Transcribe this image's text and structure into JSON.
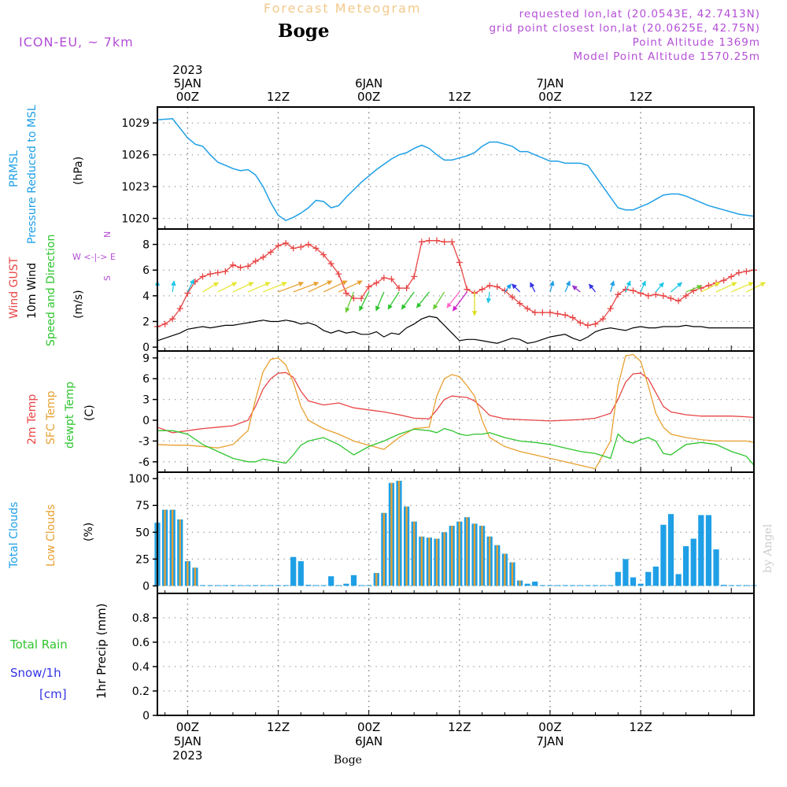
{
  "header": {
    "model": "ICON-EU, ~ 7km",
    "title": "Forecast Meteogram",
    "station": "Boge",
    "info": [
      "requested lon,lat (20.0543E, 42.7413N)",
      "grid point closest lon,lat (20.0625E, 42.75N)",
      "Point Altitude 1369m",
      "Model Point Altitude 1570.25m"
    ]
  },
  "footer_station": "Boge",
  "credit": "by Angel",
  "time_axis": {
    "top_labels": [
      {
        "h": 0,
        "lines": [
          "2023",
          "5JAN",
          "00Z"
        ]
      },
      {
        "h": 12,
        "lines": [
          "12Z"
        ]
      },
      {
        "h": 24,
        "lines": [
          "6JAN",
          "00Z"
        ]
      },
      {
        "h": 36,
        "lines": [
          "12Z"
        ]
      },
      {
        "h": 48,
        "lines": [
          "7JAN",
          "00Z"
        ]
      },
      {
        "h": 60,
        "lines": [
          "12Z"
        ]
      }
    ],
    "bottom_labels": [
      {
        "h": 0,
        "lines": [
          "00Z",
          "5JAN",
          "2023"
        ]
      },
      {
        "h": 12,
        "lines": [
          "12Z"
        ]
      },
      {
        "h": 24,
        "lines": [
          "00Z",
          "6JAN"
        ]
      },
      {
        "h": 36,
        "lines": [
          "12Z"
        ]
      },
      {
        "h": 48,
        "lines": [
          "00Z",
          "7JAN"
        ]
      },
      {
        "h": 60,
        "lines": [
          "12Z"
        ]
      }
    ]
  },
  "colors": {
    "pressure": "#1e9fe6",
    "gust": "#e84545",
    "wind": "#000000",
    "temp2m": "#e84545",
    "sfctemp": "#e8a030",
    "dewpt": "#2ec52e",
    "total_clouds": "#1e9fe6",
    "low_clouds": "#e8a030",
    "precip_label": "#3333e6",
    "compass": "#b34ed6"
  },
  "panels": {
    "pressure": {
      "labels": [
        "PRMSL",
        "Pressure Reduced to MSL"
      ],
      "unit": "(hPa)"
    },
    "wind": {
      "labels": [
        "Wind GUST",
        "10m Wind",
        "Speed and Direction"
      ],
      "unit": "(m/s)",
      "compass": [
        "N",
        "W <-|-> E",
        "S"
      ]
    },
    "temp": {
      "labels": [
        "2m Temp",
        "SFC Temp",
        "dewpt Temp"
      ],
      "unit": "(C)"
    },
    "clouds": {
      "labels": [
        "Total Clouds",
        "Low Clouds"
      ],
      "unit": "(%)"
    },
    "precip": {
      "legend": [
        "Total  Rain",
        "Snow/1h",
        "[cm]"
      ],
      "unit": "1hr Precip (mm)"
    }
  },
  "chart_data": [
    {
      "type": "line",
      "title": "PRMSL Pressure Reduced to MSL",
      "ylabel": "(hPa)",
      "ylim": [
        1019,
        1030.5
      ],
      "yticks": [
        1020,
        1023,
        1026,
        1029
      ],
      "x": [
        -4,
        -2,
        0,
        1,
        2,
        3,
        4,
        5,
        6,
        7,
        8,
        9,
        10,
        11,
        12,
        13,
        14,
        15,
        16,
        17,
        18,
        19,
        20,
        21,
        22,
        23,
        24,
        25,
        26,
        27,
        28,
        29,
        30,
        31,
        32,
        33,
        34,
        35,
        36,
        37,
        38,
        39,
        40,
        41,
        42,
        43,
        44,
        45,
        46,
        47,
        48,
        49,
        50,
        51,
        52,
        53,
        54,
        55,
        56,
        57,
        58,
        59,
        60,
        61,
        62,
        63,
        64,
        65,
        66,
        67,
        68,
        69,
        70,
        71,
        72,
        73,
        74,
        75
      ],
      "series": [
        {
          "values": [
            1029.3,
            1029.4,
            1027.6,
            1027.0,
            1026.8,
            1026.0,
            1025.3,
            1025.0,
            1024.7,
            1024.5,
            1024.6,
            1024.1,
            1023.0,
            1021.5,
            1020.3,
            1019.8,
            1020.1,
            1020.5,
            1021.0,
            1021.7,
            1021.6,
            1021.0,
            1021.2,
            1022.0,
            1022.7,
            1023.4,
            1024.0,
            1024.6,
            1025.1,
            1025.6,
            1026.0,
            1026.2,
            1026.6,
            1026.9,
            1026.6,
            1026.0,
            1025.5,
            1025.5,
            1025.7,
            1025.9,
            1026.2,
            1026.8,
            1027.2,
            1027.2,
            1027.0,
            1026.8,
            1026.3,
            1026.3,
            1026.0,
            1025.7,
            1025.4,
            1025.4,
            1025.2,
            1025.2,
            1025.2,
            1025.0,
            1024.0,
            1023.0,
            1022.0,
            1021.0,
            1020.8,
            1020.8,
            1021.1,
            1021.4,
            1021.8,
            1022.2,
            1022.3,
            1022.3,
            1022.1,
            1021.8,
            1021.5,
            1021.2,
            1021.0,
            1020.8,
            1020.6,
            1020.4,
            1020.3,
            1020.2
          ]
        }
      ]
    },
    {
      "type": "line",
      "title": "Wind GUST / 10m Wind Speed and Direction",
      "ylabel": "(m/s)",
      "ylim": [
        -0.3,
        9.2
      ],
      "yticks": [
        0,
        2,
        4,
        6,
        8
      ],
      "x": [
        -4,
        -3,
        -2,
        -1,
        0,
        1,
        2,
        3,
        4,
        5,
        6,
        7,
        8,
        9,
        10,
        11,
        12,
        13,
        14,
        15,
        16,
        17,
        18,
        19,
        20,
        21,
        22,
        23,
        24,
        25,
        26,
        27,
        28,
        29,
        30,
        31,
        32,
        33,
        34,
        35,
        36,
        37,
        38,
        39,
        40,
        41,
        42,
        43,
        44,
        45,
        46,
        47,
        48,
        49,
        50,
        51,
        52,
        53,
        54,
        55,
        56,
        57,
        58,
        59,
        60,
        61,
        62,
        63,
        64,
        65,
        66,
        67,
        68,
        69,
        70,
        71,
        72,
        73,
        74,
        75
      ],
      "series": [
        {
          "name": "Wind GUST",
          "values": [
            1.6,
            1.8,
            2.2,
            3.0,
            4.2,
            5.1,
            5.5,
            5.7,
            5.8,
            5.9,
            6.4,
            6.2,
            6.3,
            6.7,
            7.0,
            7.4,
            7.9,
            8.1,
            7.7,
            7.8,
            8.0,
            7.7,
            7.2,
            6.5,
            5.7,
            4.2,
            3.8,
            3.8,
            4.7,
            5.0,
            5.4,
            5.3,
            4.6,
            4.6,
            5.5,
            8.2,
            8.3,
            8.3,
            8.2,
            8.2,
            6.6,
            4.5,
            4.2,
            4.5,
            4.8,
            4.7,
            4.4,
            3.9,
            3.4,
            3.0,
            2.7,
            2.7,
            2.7,
            2.6,
            2.5,
            2.3,
            1.9,
            1.7,
            1.8,
            2.2,
            3.0,
            4.1,
            4.5,
            4.4,
            4.2,
            4.0,
            4.1,
            4.0,
            3.8,
            3.6,
            4.0,
            4.4,
            4.6,
            4.8,
            5.0,
            5.2,
            5.5,
            5.8,
            5.9,
            6.0
          ]
        },
        {
          "name": "10m Wind",
          "values": [
            0.5,
            0.7,
            0.9,
            1.1,
            1.4,
            1.5,
            1.6,
            1.5,
            1.6,
            1.7,
            1.7,
            1.8,
            1.9,
            2.0,
            2.1,
            2.0,
            2.0,
            2.1,
            2.0,
            1.8,
            1.9,
            1.7,
            1.3,
            1.1,
            1.3,
            1.1,
            1.2,
            1.0,
            1.0,
            1.2,
            0.8,
            1.1,
            1.0,
            1.5,
            1.8,
            2.2,
            2.4,
            2.3,
            1.7,
            1.1,
            0.5,
            0.6,
            0.6,
            0.5,
            0.4,
            0.3,
            0.5,
            0.7,
            0.6,
            0.3,
            0.4,
            0.6,
            0.8,
            0.9,
            1.0,
            0.7,
            0.5,
            0.8,
            1.2,
            1.4,
            1.5,
            1.4,
            1.3,
            1.5,
            1.6,
            1.5,
            1.5,
            1.6,
            1.6,
            1.6,
            1.7,
            1.6,
            1.6,
            1.5,
            1.5,
            1.5,
            1.5,
            1.5,
            1.5,
            1.5
          ]
        }
      ]
    },
    {
      "type": "line",
      "title": "2m Temp / SFC Temp / dewpt Temp",
      "ylabel": "(C)",
      "ylim": [
        -7.5,
        10
      ],
      "yticks": [
        -6,
        -3,
        0,
        3,
        6,
        9
      ],
      "x": [
        -4,
        -2,
        0,
        2,
        4,
        6,
        8,
        9,
        10,
        11,
        12,
        13,
        14,
        15,
        16,
        18,
        20,
        22,
        24,
        26,
        28,
        30,
        32,
        33,
        34,
        35,
        36,
        37,
        38,
        39,
        40,
        42,
        44,
        46,
        48,
        50,
        52,
        54,
        56,
        57,
        58,
        59,
        60,
        61,
        62,
        63,
        64,
        66,
        68,
        70,
        72,
        74,
        75
      ],
      "series": [
        {
          "name": "2m Temp",
          "values": [
            -1.0,
            -1.8,
            -1.5,
            -1.2,
            -1.0,
            -0.8,
            0.0,
            2.0,
            4.5,
            6.0,
            6.8,
            6.9,
            6.2,
            4.2,
            2.8,
            2.2,
            2.5,
            1.8,
            1.5,
            1.2,
            0.8,
            0.3,
            0.2,
            1.5,
            3.0,
            3.5,
            3.4,
            3.3,
            2.8,
            1.8,
            0.7,
            0.2,
            0.1,
            0.0,
            -0.1,
            0.0,
            0.1,
            0.3,
            1.0,
            3.0,
            5.5,
            6.7,
            6.8,
            6.0,
            4.0,
            2.0,
            1.2,
            0.8,
            0.6,
            0.6,
            0.6,
            0.5,
            0.4
          ]
        },
        {
          "name": "SFC Temp",
          "values": [
            -3.5,
            -3.6,
            -3.6,
            -3.8,
            -4.0,
            -3.5,
            -1.5,
            3.0,
            7.0,
            8.8,
            9.0,
            8.0,
            5.5,
            2.0,
            0.0,
            -1.2,
            -2.0,
            -3.0,
            -3.6,
            -4.2,
            -2.5,
            -1.2,
            -1.0,
            3.5,
            6.0,
            6.6,
            6.3,
            5.0,
            3.5,
            0.0,
            -2.5,
            -3.8,
            -4.5,
            -5.0,
            -5.5,
            -6.0,
            -6.5,
            -7.0,
            -3.0,
            5.0,
            9.3,
            9.5,
            8.5,
            5.0,
            1.0,
            -1.0,
            -2.0,
            -2.5,
            -2.8,
            -3.0,
            -3.0,
            -3.0,
            -3.2
          ]
        },
        {
          "name": "dewpt Temp",
          "values": [
            -1.5,
            -1.5,
            -2.0,
            -3.5,
            -4.5,
            -5.5,
            -6.0,
            -6.0,
            -5.6,
            -5.8,
            -6.0,
            -6.2,
            -5.0,
            -3.6,
            -3.0,
            -2.5,
            -3.5,
            -5.0,
            -3.8,
            -3.0,
            -2.0,
            -1.3,
            -1.5,
            -1.8,
            -1.2,
            -1.5,
            -2.0,
            -2.2,
            -2.0,
            -2.0,
            -1.8,
            -2.5,
            -3.0,
            -3.2,
            -3.5,
            -4.0,
            -4.5,
            -4.8,
            -5.5,
            -2.0,
            -3.0,
            -3.3,
            -2.8,
            -2.5,
            -3.0,
            -4.8,
            -5.0,
            -3.5,
            -3.2,
            -3.5,
            -4.5,
            -5.2,
            -6.5
          ]
        }
      ]
    },
    {
      "type": "bar",
      "title": "Total Clouds / Low Clouds",
      "ylabel": "(%)",
      "ylim": [
        -7,
        106
      ],
      "yticks": [
        0,
        25,
        50,
        75,
        100
      ],
      "x": [
        -4,
        -3,
        -2,
        -1,
        0,
        1,
        2,
        3,
        4,
        5,
        6,
        7,
        8,
        9,
        10,
        11,
        12,
        13,
        14,
        15,
        16,
        17,
        18,
        19,
        20,
        21,
        22,
        23,
        24,
        25,
        26,
        27,
        28,
        29,
        30,
        31,
        32,
        33,
        34,
        35,
        36,
        37,
        38,
        39,
        40,
        41,
        42,
        43,
        44,
        45,
        46,
        47,
        48,
        49,
        50,
        51,
        52,
        53,
        54,
        55,
        56,
        57,
        58,
        59,
        60,
        61,
        62,
        63,
        64,
        65,
        66,
        67,
        68,
        69,
        70,
        71,
        72,
        73,
        74,
        75
      ],
      "series": [
        {
          "name": "Total Clouds",
          "values": [
            59,
            71,
            71,
            62,
            23,
            17,
            0,
            0,
            0,
            0,
            0,
            0,
            0,
            0,
            0,
            0,
            0,
            0,
            27,
            23,
            1,
            0,
            0,
            9,
            0,
            2,
            10,
            0,
            0,
            12,
            68,
            96,
            98,
            74,
            60,
            46,
            45,
            44,
            50,
            56,
            60,
            64,
            58,
            56,
            46,
            38,
            30,
            22,
            5,
            2,
            4,
            0,
            0,
            0,
            0,
            0,
            0,
            0,
            0,
            0,
            0,
            13,
            25,
            8,
            2,
            13,
            18,
            57,
            67,
            11,
            37,
            44,
            66,
            66,
            34,
            1,
            0,
            0,
            0,
            0
          ]
        },
        {
          "name": "Low Clouds",
          "values": [
            59,
            71,
            71,
            62,
            23,
            17,
            0,
            0,
            0,
            0,
            0,
            0,
            0,
            0,
            0,
            0,
            0,
            0,
            0,
            0,
            0,
            0,
            0,
            0,
            0,
            0,
            0,
            0,
            0,
            12,
            68,
            96,
            98,
            74,
            60,
            46,
            45,
            44,
            50,
            56,
            60,
            64,
            58,
            56,
            46,
            38,
            30,
            22,
            5,
            0,
            0,
            0,
            0,
            0,
            0,
            0,
            0,
            0,
            0,
            0,
            0,
            0,
            0,
            0,
            0,
            0,
            0,
            0,
            0,
            0,
            0,
            0,
            0,
            0,
            0,
            0,
            0,
            0,
            0,
            0
          ]
        }
      ]
    },
    {
      "type": "bar",
      "title": "1hr Precip",
      "ylabel": "1hr Precip (mm)",
      "ylim": [
        0,
        1
      ],
      "yticks": [
        0,
        0.2,
        0.4,
        0.6,
        0.8
      ],
      "ytick_labels": [
        "0",
        "0.2",
        "0.4",
        "0.6",
        "0.8"
      ],
      "x": [
        -4,
        75
      ],
      "series": [
        {
          "name": "Total Rain",
          "values": [
            0,
            0
          ]
        }
      ]
    }
  ]
}
